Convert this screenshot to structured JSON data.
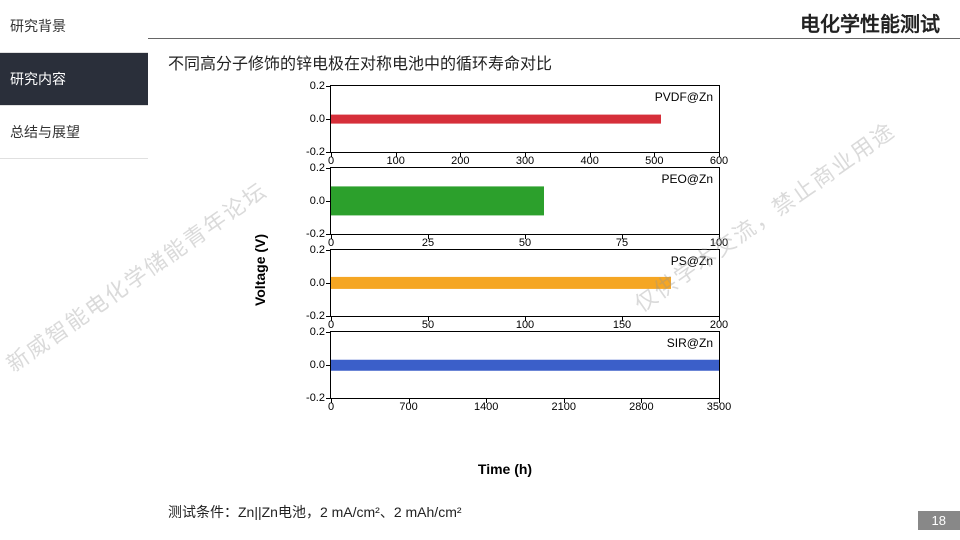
{
  "header": {
    "title": "电化学性能测试"
  },
  "sidebar": {
    "items": [
      {
        "label": "研究背景",
        "active": false
      },
      {
        "label": "研究内容",
        "active": true
      },
      {
        "label": "总结与展望",
        "active": false
      }
    ]
  },
  "subtitle": "不同高分子修饰的锌电极在对称电池中的循环寿命对比",
  "chart": {
    "ylabel": "Voltage (V)",
    "xlabel": "Time (h)",
    "yticks": [
      -0.2,
      0.0,
      0.2
    ],
    "panels": [
      {
        "label": "PVDF@Zn",
        "color": "#d62f3a",
        "xlim": [
          0,
          600
        ],
        "xticks": [
          0,
          100,
          200,
          300,
          400,
          500,
          600
        ],
        "data_end": 510,
        "noise_amp": 0.02
      },
      {
        "label": "PEO@Zn",
        "color": "#2ca02c",
        "xlim": [
          0,
          100
        ],
        "xticks": [
          0,
          25,
          50,
          75,
          100
        ],
        "data_end": 55,
        "noise_amp": 0.08
      },
      {
        "label": "PS@Zn",
        "color": "#f5a623",
        "xlim": [
          0,
          200
        ],
        "xticks": [
          0,
          50,
          100,
          150,
          200
        ],
        "data_end": 175,
        "noise_amp": 0.03
      },
      {
        "label": "SIR@Zn",
        "color": "#3b5fc9",
        "xlim": [
          0,
          3500
        ],
        "xticks": [
          0,
          700,
          1400,
          2100,
          2800,
          3500
        ],
        "data_end": 3500,
        "noise_amp": 0.025
      }
    ]
  },
  "footer": "测试条件：Zn||Zn电池，2 mA/cm²、2 mAh/cm²",
  "page_number": "18",
  "watermarks": {
    "left": "新威智能电化学储能青年论坛",
    "right": "仅供学术交流，禁止商业用途"
  }
}
